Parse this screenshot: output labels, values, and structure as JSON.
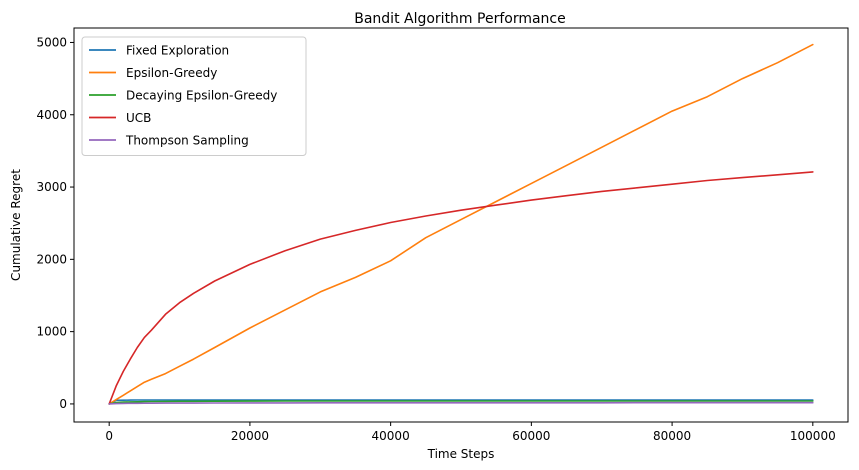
{
  "chart_data": {
    "type": "line",
    "title": "Bandit Algorithm Performance",
    "xlabel": "Time Steps",
    "ylabel": "Cumulative Regret",
    "xlim": [
      -5000,
      105000
    ],
    "ylim": [
      -250,
      5200
    ],
    "xticks": [
      0,
      20000,
      40000,
      60000,
      80000,
      100000
    ],
    "xtick_labels": [
      "0",
      "20000",
      "40000",
      "60000",
      "80000",
      "100000"
    ],
    "yticks": [
      0,
      1000,
      2000,
      3000,
      4000,
      5000
    ],
    "ytick_labels": [
      "0",
      "1000",
      "2000",
      "3000",
      "4000",
      "5000"
    ],
    "grid": false,
    "legend_position": "top-left",
    "x": [
      0,
      1000,
      2000,
      3000,
      4000,
      5000,
      6000,
      8000,
      10000,
      12000,
      15000,
      20000,
      25000,
      30000,
      35000,
      40000,
      45000,
      50000,
      55000,
      60000,
      65000,
      70000,
      75000,
      80000,
      85000,
      90000,
      95000,
      100000
    ],
    "series": [
      {
        "name": "Fixed Exploration",
        "color": "#1f77b4",
        "values": [
          0,
          50,
          52,
          53,
          54,
          55,
          55,
          55,
          55,
          55,
          55,
          55,
          55,
          55,
          55,
          55,
          55,
          55,
          55,
          55,
          55,
          55,
          55,
          55,
          55,
          55,
          55,
          55
        ]
      },
      {
        "name": "Epsilon-Greedy",
        "color": "#ff7f0e",
        "values": [
          0,
          60,
          120,
          180,
          240,
          300,
          340,
          420,
          520,
          620,
          780,
          1050,
          1300,
          1550,
          1750,
          1980,
          2300,
          2550,
          2800,
          3050,
          3300,
          3550,
          3800,
          4050,
          4250,
          4500,
          4720,
          4970
        ]
      },
      {
        "name": "Decaying Epsilon-Greedy",
        "color": "#2ca02c",
        "values": [
          0,
          20,
          25,
          28,
          30,
          32,
          33,
          35,
          36,
          37,
          38,
          39,
          40,
          40,
          40,
          40,
          40,
          40,
          40,
          40,
          40,
          40,
          40,
          40,
          40,
          40,
          40,
          40
        ]
      },
      {
        "name": "UCB",
        "color": "#d62728",
        "values": [
          0,
          250,
          450,
          620,
          780,
          920,
          1020,
          1240,
          1400,
          1530,
          1700,
          1930,
          2120,
          2280,
          2400,
          2510,
          2600,
          2680,
          2750,
          2820,
          2880,
          2940,
          2990,
          3040,
          3090,
          3130,
          3170,
          3210
        ]
      },
      {
        "name": "Thompson Sampling",
        "color": "#9467bd",
        "values": [
          0,
          5,
          7,
          8,
          9,
          10,
          10,
          11,
          12,
          12,
          13,
          14,
          14,
          15,
          15,
          15,
          15,
          16,
          16,
          16,
          16,
          16,
          17,
          17,
          17,
          17,
          17,
          17
        ]
      }
    ]
  }
}
